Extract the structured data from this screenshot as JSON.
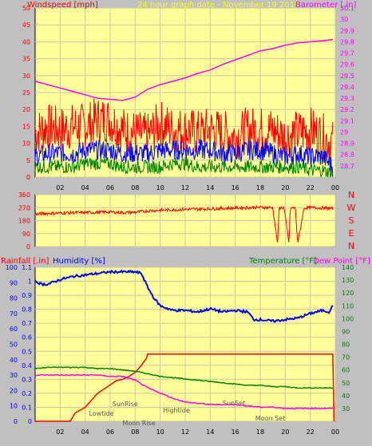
{
  "colors": {
    "background": "#c0c0c0",
    "plot_bg": "#ffff99",
    "wind_gust": "#ff0000",
    "wind_avg": "#0000ff",
    "wind_min": "#008000",
    "barometer": "#ff00ff",
    "direction": "#ff0000",
    "humidity": "#0000ff",
    "rainfall": "#ff0000",
    "temperature": "#008000",
    "dewpoint": "#ff00ff",
    "subtitle": "#ffff00"
  },
  "chart_data": [
    {
      "type": "line",
      "title": "24 hour graph date - November 19 2017",
      "ylabel_left": "Windspeed [mph]",
      "ylabel_right": "Barometer [.in]",
      "ylim_left": [
        0,
        50
      ],
      "ylim_right": [
        28.6,
        30.1
      ],
      "yticks_left": [
        "0",
        "5",
        "10",
        "15",
        "20",
        "25",
        "30",
        "35",
        "40",
        "45",
        "50"
      ],
      "yticks_right": [
        "28.7",
        "28.8",
        "28.9",
        "29",
        "29.1",
        "29.2",
        "29.3",
        "29.4",
        "29.5",
        "29.6",
        "29.7",
        "29.8",
        "29.9",
        "30",
        "30.1"
      ],
      "x_hours": [
        0,
        24
      ],
      "grid": true,
      "series": [
        {
          "name": "Windspeed gust",
          "x": [
            0,
            1,
            2,
            3,
            4,
            5,
            6,
            7,
            8,
            9,
            10,
            11,
            12,
            13,
            14,
            15,
            16,
            17,
            18,
            19,
            20,
            21,
            22,
            23,
            23.8
          ],
          "y": [
            13,
            15,
            14,
            15,
            15,
            17,
            17,
            14,
            13,
            12,
            16,
            14,
            14,
            13,
            14,
            13,
            12,
            14,
            14,
            14,
            12,
            13,
            14,
            12,
            10
          ]
        },
        {
          "name": "Windspeed average",
          "x": [
            0,
            1,
            2,
            3,
            4,
            5,
            6,
            7,
            8,
            9,
            10,
            11,
            12,
            13,
            14,
            15,
            16,
            17,
            18,
            19,
            20,
            21,
            22,
            23,
            23.8
          ],
          "y": [
            6,
            7,
            7,
            7,
            8,
            8,
            8,
            7,
            7,
            7,
            8,
            8,
            8,
            8,
            8,
            7,
            7,
            8,
            8,
            7,
            6,
            7,
            6,
            6,
            3
          ]
        },
        {
          "name": "Windspeed minimum",
          "x": [
            0,
            1,
            2,
            3,
            4,
            5,
            6,
            7,
            8,
            9,
            10,
            11,
            12,
            13,
            14,
            15,
            16,
            17,
            18,
            19,
            20,
            21,
            22,
            23,
            23.8
          ],
          "y": [
            3,
            3,
            3,
            3,
            4,
            4,
            4,
            3,
            3,
            3,
            3,
            4,
            4,
            3,
            3,
            3,
            3,
            3,
            3,
            3,
            3,
            3,
            2,
            2,
            1
          ]
        },
        {
          "name": "Barometer",
          "x": [
            0,
            1,
            2,
            3,
            4,
            5,
            6,
            7,
            8,
            9,
            10,
            11,
            12,
            13,
            14,
            15,
            16,
            17,
            18,
            19,
            20,
            21,
            22,
            23,
            23.8
          ],
          "y": [
            29.45,
            29.42,
            29.39,
            29.36,
            29.33,
            29.3,
            29.29,
            29.28,
            29.31,
            29.38,
            29.42,
            29.45,
            29.48,
            29.52,
            29.55,
            29.6,
            29.64,
            29.68,
            29.72,
            29.74,
            29.77,
            29.79,
            29.8,
            29.81,
            29.82
          ]
        }
      ]
    },
    {
      "type": "line",
      "ylabel_right_letters": [
        "N",
        "W",
        "S",
        "E",
        "N"
      ],
      "ylim": [
        0,
        360
      ],
      "yticks": [
        "0",
        "90",
        "180",
        "270",
        "360"
      ],
      "x_hours": [
        0,
        24
      ],
      "xticks": [
        "02",
        "04",
        "06",
        "08",
        "10",
        "12",
        "14",
        "16",
        "18",
        "20",
        "22",
        "00"
      ],
      "series": [
        {
          "name": "Wind direction",
          "x": [
            0,
            1,
            2,
            3,
            4,
            5,
            6,
            7,
            8,
            9,
            10,
            11,
            12,
            13,
            14,
            15,
            16,
            17,
            18,
            19,
            19.4,
            19.5,
            19.9,
            20.3,
            20.4,
            20.8,
            21,
            21.5,
            22,
            23,
            23.8
          ],
          "y": [
            225,
            230,
            232,
            235,
            236,
            238,
            240,
            235,
            238,
            248,
            252,
            255,
            258,
            260,
            262,
            265,
            268,
            270,
            272,
            270,
            10,
            268,
            270,
            20,
            265,
            270,
            20,
            268,
            270,
            268,
            265
          ]
        }
      ]
    },
    {
      "type": "line",
      "ylabel_left_rain": "Rainfall [.in]",
      "ylabel_left_humidity": "Humidity [%]",
      "ylabel_right_temp": "Temperature [°F]",
      "ylabel_right_dew": "Dew Point [°F]",
      "ylim_humidity": [
        0,
        100
      ],
      "ylim_rain": [
        0,
        1.1
      ],
      "ylim_temp": [
        20,
        140
      ],
      "yticks_humidity": [
        "0",
        "10",
        "20",
        "30",
        "40",
        "50",
        "60",
        "70",
        "80",
        "90",
        "100"
      ],
      "yticks_rain": [
        "0",
        "0.1",
        "0.2",
        "0.3",
        "0.4",
        "0.5",
        "0.6",
        "0.7",
        "0.8",
        "0.9",
        "1",
        "1.1"
      ],
      "yticks_temp": [
        "30",
        "40",
        "50",
        "60",
        "70",
        "80",
        "90",
        "100",
        "110",
        "120",
        "130",
        "140"
      ],
      "x_hours": [
        0,
        24
      ],
      "xticks": [
        "02",
        "04",
        "06",
        "08",
        "10",
        "12",
        "14",
        "16",
        "18",
        "20",
        "22",
        "00"
      ],
      "annotations": [
        "SunRise",
        "Lowtide",
        "Moon Rise",
        "Hightide",
        "SunSet",
        "Moon Set"
      ],
      "series": [
        {
          "name": "Humidity",
          "x": [
            0,
            0.5,
            1,
            2,
            3,
            4,
            5,
            6,
            7,
            8,
            8.5,
            9,
            9.5,
            10,
            11,
            12,
            13,
            14,
            15,
            16,
            17,
            17.5,
            18,
            19,
            20,
            21,
            22,
            23,
            23.5,
            23.8
          ],
          "y": [
            91,
            89,
            89,
            92,
            94,
            95,
            96,
            97,
            97,
            97,
            96,
            87,
            80,
            75,
            72,
            72,
            71,
            73,
            71,
            72,
            71,
            66,
            66,
            65,
            66,
            67,
            70,
            72,
            71,
            75
          ]
        },
        {
          "name": "Rainfall",
          "x": [
            0,
            2.8,
            3.2,
            4,
            4.5,
            5,
            5.5,
            6,
            6.5,
            7,
            7.5,
            8,
            8.5,
            8.9,
            9,
            23.8,
            23.9
          ],
          "y": [
            0,
            0,
            0.06,
            0.1,
            0.15,
            0.2,
            0.23,
            0.26,
            0.29,
            0.3,
            0.32,
            0.35,
            0.4,
            0.45,
            0.48,
            0.48,
            0
          ]
        },
        {
          "name": "Temperature",
          "x": [
            0,
            1,
            2,
            3,
            4,
            5,
            6,
            7,
            8,
            9,
            10,
            11,
            12,
            13,
            14,
            15,
            16,
            17,
            18,
            19,
            20,
            21,
            22,
            23,
            23.8
          ],
          "y": [
            61,
            62,
            62,
            62,
            62,
            61,
            61,
            60,
            59,
            57,
            55,
            54,
            53,
            52,
            51,
            50,
            49,
            48,
            48,
            47,
            47,
            46,
            46,
            46,
            46
          ]
        },
        {
          "name": "Dew Point",
          "x": [
            0,
            1,
            2,
            3,
            4,
            5,
            6,
            7,
            8,
            9,
            10,
            11,
            12,
            13,
            14,
            15,
            16,
            17,
            18,
            19,
            20,
            21,
            22,
            23,
            23.8
          ],
          "y": [
            56,
            56,
            56,
            56,
            56,
            56,
            55,
            55,
            52,
            46,
            42,
            38,
            35,
            34,
            33,
            33,
            33,
            32,
            31,
            31,
            30,
            30,
            30,
            30,
            30
          ]
        }
      ]
    }
  ]
}
